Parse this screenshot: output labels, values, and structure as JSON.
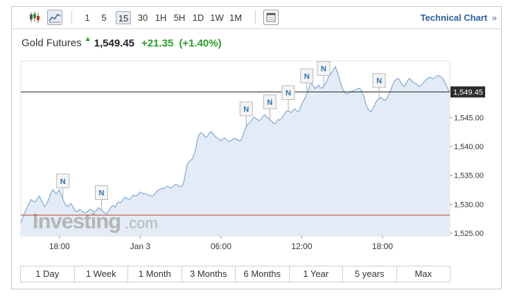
{
  "toolbar": {
    "chart_type_icons": [
      "candlestick-icon",
      "area-chart-icon"
    ],
    "active_chart_type": "area-chart-icon",
    "timeframes": [
      "1",
      "5",
      "15",
      "30",
      "1H",
      "5H",
      "1D",
      "1W",
      "1M"
    ],
    "active_timeframe": "15",
    "extra_icon": "window-icon",
    "technical_link": "Technical Chart",
    "technical_link_icon": "»"
  },
  "header": {
    "instrument": "Gold Futures",
    "direction_icon": "up-arrow-icon",
    "price": "1,549.45",
    "change": "+21.35",
    "change_pct": "(+1.40%)",
    "up_color": "#2a9d2a"
  },
  "watermark": {
    "brand": "Investing",
    "suffix": ".com"
  },
  "range_buttons": [
    "1 Day",
    "1 Week",
    "1 Month",
    "3 Months",
    "6 Months",
    "1 Year",
    "5 years",
    "Max"
  ],
  "chart_data": {
    "type": "area",
    "ylim": [
      1524.5,
      1554.8
    ],
    "y_ticks": [
      "1,525.00",
      "1,530.00",
      "1,535.00",
      "1,540.00",
      "1,545.00"
    ],
    "y_tick_values": [
      1525,
      1530,
      1535,
      1540,
      1545
    ],
    "x_tick_labels": [
      "18:00",
      "Jan 3",
      "06:00",
      "12:00",
      "18:00"
    ],
    "x_tick_index": [
      23,
      71,
      119,
      167,
      215
    ],
    "current_price_label": "1,549.45",
    "current_price": 1549.45,
    "reference_line_price": 1528.1,
    "news_marker_label": "N",
    "news_marker_index": [
      25,
      48,
      134,
      148,
      159,
      170,
      180,
      213
    ],
    "line_color": "#7fa9d1",
    "fill_color": "#e3ecf6",
    "current_line_color": "#222222",
    "reference_line_color": "#c0392b",
    "values": [
      1526.8,
      1527.5,
      1528.4,
      1528.9,
      1529.6,
      1530.2,
      1530.8,
      1530.6,
      1530.4,
      1530.5,
      1531.0,
      1531.4,
      1530.8,
      1530.2,
      1529.6,
      1529.9,
      1530.5,
      1531.2,
      1532.0,
      1532.5,
      1532.2,
      1531.8,
      1532.1,
      1532.5,
      1531.6,
      1530.9,
      1530.2,
      1529.8,
      1529.6,
      1529.9,
      1530.1,
      1529.5,
      1529.0,
      1528.7,
      1528.8,
      1529.1,
      1528.9,
      1528.6,
      1528.5,
      1528.6,
      1528.8,
      1529.1,
      1529.0,
      1528.8,
      1528.7,
      1528.9,
      1529.4,
      1529.2,
      1528.9,
      1528.7,
      1528.5,
      1528.3,
      1528.7,
      1529.2,
      1529.6,
      1529.8,
      1529.5,
      1530.0,
      1530.4,
      1530.3,
      1530.5,
      1530.9,
      1531.2,
      1531.0,
      1530.8,
      1530.9,
      1531.3,
      1531.6,
      1531.4,
      1531.5,
      1531.8,
      1532.1,
      1532.0,
      1531.8,
      1531.9,
      1531.7,
      1531.6,
      1531.5,
      1531.4,
      1531.6,
      1531.9,
      1532.3,
      1532.5,
      1532.6,
      1532.8,
      1532.7,
      1532.9,
      1533.1,
      1533.0,
      1532.8,
      1532.9,
      1533.2,
      1533.4,
      1533.3,
      1533.1,
      1533.0,
      1533.2,
      1534.0,
      1535.6,
      1536.9,
      1537.4,
      1537.6,
      1537.9,
      1538.6,
      1539.7,
      1541.2,
      1542.1,
      1542.4,
      1542.2,
      1541.9,
      1541.6,
      1541.8,
      1542.3,
      1542.6,
      1542.3,
      1541.9,
      1541.6,
      1541.4,
      1541.2,
      1541.0,
      1541.3,
      1541.5,
      1541.3,
      1541.0,
      1540.9,
      1541.0,
      1541.2,
      1541.4,
      1541.3,
      1541.1,
      1541.0,
      1541.1,
      1541.8,
      1542.7,
      1543.4,
      1543.9,
      1544.1,
      1544.4,
      1544.9,
      1545.1,
      1544.8,
      1544.6,
      1544.5,
      1544.8,
      1545.3,
      1545.5,
      1545.2,
      1544.9,
      1544.6,
      1544.4,
      1544.1,
      1543.9,
      1544.3,
      1544.7,
      1544.5,
      1544.9,
      1545.3,
      1545.8,
      1546.1,
      1546.2,
      1546.0,
      1545.9,
      1546.3,
      1546.5,
      1546.2,
      1546.0,
      1546.6,
      1547.3,
      1547.9,
      1548.4,
      1549.1,
      1549.9,
      1550.7,
      1550.9,
      1550.5,
      1550.0,
      1550.3,
      1550.6,
      1550.2,
      1550.1,
      1550.4,
      1550.8,
      1551.4,
      1552.1,
      1552.5,
      1552.9,
      1553.4,
      1553.8,
      1553.0,
      1552.2,
      1551.1,
      1550.2,
      1549.6,
      1549.2,
      1549.1,
      1549.3,
      1549.5,
      1549.6,
      1549.7,
      1549.8,
      1550.0,
      1550.1,
      1549.9,
      1549.4,
      1548.6,
      1547.5,
      1546.7,
      1546.3,
      1546.0,
      1546.4,
      1547.0,
      1547.6,
      1548.1,
      1548.3,
      1548.5,
      1548.3,
      1548.0,
      1548.1,
      1548.5,
      1549.1,
      1549.9,
      1550.6,
      1551.3,
      1551.6,
      1551.8,
      1551.6,
      1551.0,
      1550.6,
      1550.4,
      1550.9,
      1551.4,
      1551.8,
      1551.5,
      1551.2,
      1551.0,
      1550.9,
      1550.6,
      1550.4,
      1550.6,
      1550.9,
      1551.3,
      1551.6,
      1551.8,
      1552.0,
      1551.9,
      1551.7,
      1551.9,
      1552.1,
      1552.3,
      1552.2,
      1552.0,
      1551.7,
      1551.2,
      1550.5,
      1549.9,
      1549.45
    ]
  }
}
